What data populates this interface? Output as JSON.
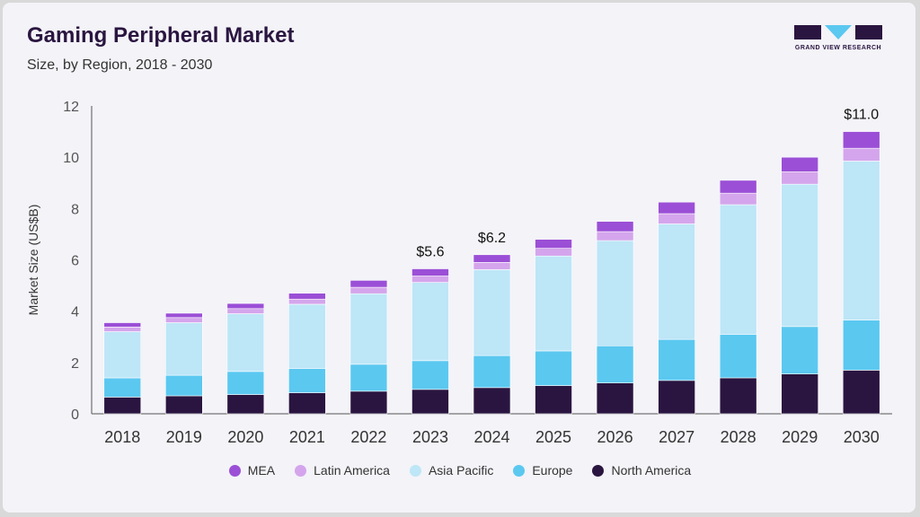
{
  "header": {
    "title": "Gaming Peripheral Market",
    "subtitle": "Size, by Region, 2018 - 2030",
    "logo_text": "GRAND VIEW RESEARCH"
  },
  "colors": {
    "MEA": "#9b4fd6",
    "Latin America": "#d4a5ec",
    "Asia Pacific": "#bde6f7",
    "Europe": "#5bc8f0",
    "North America": "#2a1540",
    "axis_text": "#555555",
    "logo_dark": "#2a1540",
    "logo_accent": "#5bc8f0"
  },
  "chart_data": {
    "type": "bar",
    "stacked": true,
    "categories": [
      "2018",
      "2019",
      "2020",
      "2021",
      "2022",
      "2023",
      "2024",
      "2025",
      "2026",
      "2027",
      "2028",
      "2029",
      "2030"
    ],
    "series": [
      {
        "name": "North America",
        "values": [
          0.65,
          0.7,
          0.75,
          0.82,
          0.88,
          0.95,
          1.02,
          1.1,
          1.2,
          1.3,
          1.4,
          1.55,
          1.7
        ]
      },
      {
        "name": "Europe",
        "values": [
          0.75,
          0.8,
          0.9,
          0.95,
          1.05,
          1.12,
          1.25,
          1.35,
          1.45,
          1.6,
          1.7,
          1.85,
          1.95
        ]
      },
      {
        "name": "Asia Pacific",
        "values": [
          1.8,
          2.05,
          2.25,
          2.5,
          2.75,
          3.05,
          3.35,
          3.7,
          4.1,
          4.5,
          5.05,
          5.55,
          6.2
        ]
      },
      {
        "name": "Latin America",
        "values": [
          0.18,
          0.2,
          0.2,
          0.2,
          0.25,
          0.25,
          0.28,
          0.3,
          0.35,
          0.4,
          0.45,
          0.48,
          0.5
        ]
      },
      {
        "name": "MEA",
        "values": [
          0.17,
          0.17,
          0.2,
          0.23,
          0.27,
          0.28,
          0.3,
          0.35,
          0.4,
          0.45,
          0.5,
          0.57,
          0.65
        ]
      }
    ],
    "annotations": [
      {
        "category": "2023",
        "label": "$5.6"
      },
      {
        "category": "2024",
        "label": "$6.2"
      },
      {
        "category": "2030",
        "label": "$11.0"
      }
    ],
    "legend_order": [
      "MEA",
      "Latin America",
      "Asia Pacific",
      "Europe",
      "North America"
    ],
    "xlabel": "",
    "ylabel": "Market Size (US$B)",
    "ylim": [
      0,
      12
    ],
    "yticks": [
      0,
      2,
      4,
      6,
      8,
      10,
      12
    ],
    "grid": false,
    "legend_position": "bottom"
  }
}
